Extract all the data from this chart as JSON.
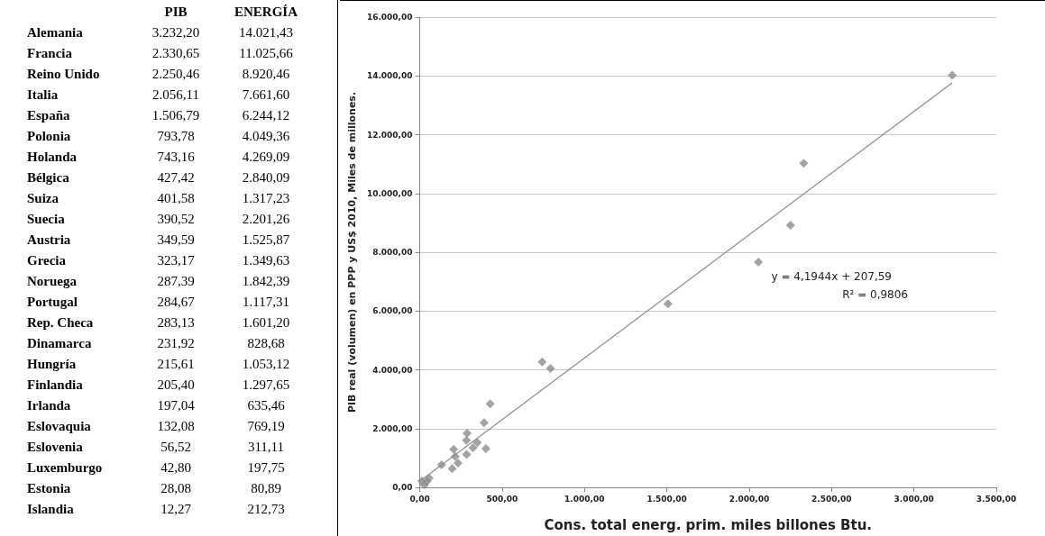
{
  "chart_data": [
    {
      "type": "other",
      "categories": [
        "Alemania",
        "Francia",
        "Reino Unido",
        "Italia",
        "España",
        "Polonia",
        "Holanda",
        "Bélgica",
        "Suiza",
        "Suecia",
        "Austria",
        "Grecia",
        "Noruega",
        "Portugal",
        "Rep. Checa",
        "Dinamarca",
        "Hungría",
        "Finlandia",
        "Irlanda",
        "Eslovaquia",
        "Eslovenia",
        "Luxemburgo",
        "Estonia",
        "Islandia"
      ],
      "series": [
        {
          "name": "PIB",
          "values": [
            3232.2,
            2330.65,
            2250.46,
            2056.11,
            1506.79,
            793.78,
            743.16,
            427.42,
            401.58,
            390.52,
            349.59,
            323.17,
            287.39,
            284.67,
            283.13,
            231.92,
            215.61,
            205.4,
            197.04,
            132.08,
            56.52,
            42.8,
            28.08,
            12.27
          ],
          "value_labels": [
            "3.232,20",
            "2.330,65",
            "2.250,46",
            "2.056,11",
            "1.506,79",
            "793,78",
            "743,16",
            "427,42",
            "401,58",
            "390,52",
            "349,59",
            "323,17",
            "287,39",
            "284,67",
            "283,13",
            "231,92",
            "215,61",
            "205,40",
            "197,04",
            "132,08",
            "56,52",
            "42,80",
            "28,08",
            "12,27"
          ]
        },
        {
          "name": "ENERGÍA",
          "values": [
            14021.43,
            11025.66,
            8920.46,
            7661.6,
            6244.12,
            4049.36,
            4269.09,
            2840.09,
            1317.23,
            2201.26,
            1525.87,
            1349.63,
            1842.39,
            1117.31,
            1601.2,
            828.68,
            1053.12,
            1297.65,
            635.46,
            769.19,
            311.11,
            197.75,
            80.89,
            212.73
          ],
          "value_labels": [
            "14.021,43",
            "11.025,66",
            "8.920,46",
            "7.661,60",
            "6.244,12",
            "4.049,36",
            "4.269,09",
            "2.840,09",
            "1.317,23",
            "2.201,26",
            "1.525,87",
            "1.349,63",
            "1.842,39",
            "1.117,31",
            "1.601,20",
            "828,68",
            "1.053,12",
            "1.297,65",
            "635,46",
            "769,19",
            "311,11",
            "197,75",
            "80,89",
            "212,73"
          ]
        }
      ]
    },
    {
      "type": "scatter",
      "xlabel": "Cons. total energ. prim. miles billones Btu.",
      "ylabel": "PIB real (volumen) en PPP y US$ 2010, Miles de millones.",
      "x": [
        3232.2,
        2330.65,
        2250.46,
        2056.11,
        1506.79,
        793.78,
        743.16,
        427.42,
        401.58,
        390.52,
        349.59,
        323.17,
        287.39,
        284.67,
        283.13,
        231.92,
        215.61,
        205.4,
        197.04,
        132.08,
        56.52,
        42.8,
        28.08,
        12.27
      ],
      "series": [
        {
          "type": "scatter",
          "color": "#8c8c8c",
          "values": [
            14021.43,
            11025.66,
            8920.46,
            7661.6,
            6244.12,
            4049.36,
            4269.09,
            2840.09,
            1317.23,
            2201.26,
            1525.87,
            1349.63,
            1842.39,
            1117.31,
            1601.2,
            828.68,
            1053.12,
            1297.65,
            635.46,
            769.19,
            311.11,
            197.75,
            80.89,
            212.73
          ]
        },
        {
          "type": "line",
          "color": "#8c8c8c",
          "marker": "none",
          "x": [
            0,
            3232
          ],
          "values": [
            210,
            13760
          ]
        }
      ],
      "marker": "diamond",
      "grid": "y",
      "xlim": [
        0,
        3500
      ],
      "xticks": [
        {
          "value": 0,
          "label": "0,00"
        },
        {
          "value": 500,
          "label": "500,00"
        },
        {
          "value": 1000,
          "label": "1.000,00"
        },
        {
          "value": 1500,
          "label": "1.500,00"
        },
        {
          "value": 2000,
          "label": "2.000,00"
        },
        {
          "value": 2500,
          "label": "2.500,00"
        },
        {
          "value": 3000,
          "label": "3.000,00"
        },
        {
          "value": 3500,
          "label": "3.500,00"
        }
      ],
      "ylim": [
        0,
        16000
      ],
      "yticks": [
        {
          "value": 0,
          "label": "0,00"
        },
        {
          "value": 2000,
          "label": "2.000,00"
        },
        {
          "value": 4000,
          "label": "4.000,00"
        },
        {
          "value": 6000,
          "label": "6.000,00"
        },
        {
          "value": 8000,
          "label": "8.000,00"
        },
        {
          "value": 10000,
          "label": "10.000,00"
        },
        {
          "value": 12000,
          "label": "12.000,00"
        },
        {
          "value": 14000,
          "label": "14.000,00"
        },
        {
          "value": 16000,
          "label": "16.000,00"
        }
      ],
      "annotations": [
        "y = 4,1944x + 207,59",
        "R² = 0,9806"
      ]
    }
  ]
}
